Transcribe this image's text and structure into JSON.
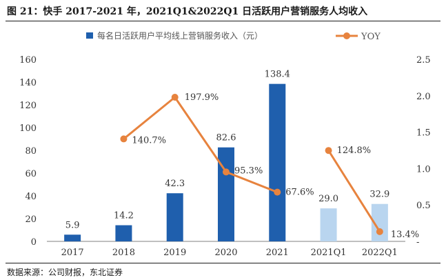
{
  "header": {
    "title": "图 21：快手 2017-2021 年，2021Q1&2022Q1 日活跃用户营销服务人均收入"
  },
  "footer": {
    "source": "数据来源：公司财报，东北证券"
  },
  "colors": {
    "bar": "#1f5fad",
    "bar_light": "#b9d5ef",
    "line": "#e7833e",
    "axis": "#7f7f7f",
    "text": "#333333"
  },
  "chart_data": {
    "type": "bar+line",
    "categories": [
      "2017",
      "2018",
      "2019",
      "2020",
      "2021",
      "2021Q1",
      "2022Q1"
    ],
    "series": [
      {
        "name": "每名日活跃用户平均线上营销服务收入（元）",
        "type": "bar",
        "axis": "left",
        "values": [
          5.9,
          14.2,
          42.3,
          82.6,
          138.4,
          29.0,
          32.9
        ],
        "labels": [
          "5.9",
          "14.2",
          "42.3",
          "82.6",
          "138.4",
          "29.0",
          "32.9"
        ],
        "highlight": [
          false,
          false,
          false,
          false,
          false,
          true,
          true
        ]
      },
      {
        "name": "YOY",
        "type": "line",
        "axis": "right",
        "segments": [
          {
            "x": [
              "2018",
              "2019",
              "2020",
              "2021"
            ],
            "values": [
              1.407,
              1.979,
              0.953,
              0.676
            ],
            "labels": [
              "140.7%",
              "197.9%",
              "95.3%",
              "67.6%"
            ]
          },
          {
            "x": [
              "2021Q1",
              "2022Q1"
            ],
            "values": [
              1.248,
              0.134
            ],
            "labels": [
              "124.8%",
              "13.4%"
            ]
          }
        ]
      }
    ],
    "y_left": {
      "min": 0,
      "max": 160,
      "ticks": [
        "0",
        "20",
        "40",
        "60",
        "80",
        "100",
        "120",
        "140",
        "160"
      ]
    },
    "y_right": {
      "min": 0,
      "max": 2.5,
      "ticks": [
        "-",
        "0.5",
        "1.0",
        "1.5",
        "2.0",
        "2.5"
      ]
    },
    "legend": {
      "position": "top",
      "bar_label": "每名日活跃用户平均线上营销服务收入（元）",
      "line_label": "YOY"
    }
  }
}
